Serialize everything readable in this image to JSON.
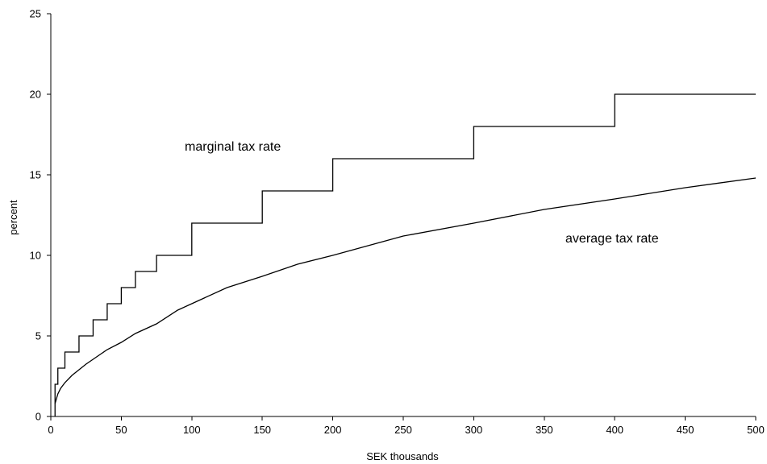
{
  "chart_data": {
    "type": "line",
    "title": "",
    "xlabel": "SEK thousands",
    "ylabel": "percent",
    "xlim": [
      0,
      500
    ],
    "ylim": [
      0,
      25
    ],
    "xticks": [
      0,
      50,
      100,
      150,
      200,
      250,
      300,
      350,
      400,
      450,
      500
    ],
    "yticks": [
      0,
      5,
      10,
      15,
      20,
      25
    ],
    "grid": false,
    "legend": "none",
    "series": [
      {
        "name": "marginal tax rate",
        "style": "step",
        "x": [
          3,
          3,
          5,
          5,
          10,
          10,
          15,
          15,
          20,
          20,
          30,
          30,
          40,
          40,
          50,
          50,
          60,
          60,
          75,
          75,
          100,
          100,
          150,
          150,
          200,
          200,
          300,
          300,
          400,
          400,
          500
        ],
        "y": [
          0,
          2,
          2,
          3,
          3,
          4,
          4,
          4,
          4,
          5,
          5,
          6,
          6,
          7,
          7,
          8,
          8,
          9,
          9,
          10,
          10,
          12,
          12,
          14,
          14,
          16,
          16,
          18,
          18,
          20,
          20
        ]
      },
      {
        "name": "average tax rate",
        "style": "line",
        "x": [
          3,
          5,
          7,
          10,
          15,
          20,
          25,
          30,
          40,
          50,
          60,
          75,
          90,
          100,
          125,
          150,
          175,
          200,
          250,
          300,
          350,
          400,
          450,
          500
        ],
        "y": [
          0.8,
          1.4,
          1.75,
          2.1,
          2.55,
          2.9,
          3.25,
          3.55,
          4.15,
          4.6,
          5.15,
          5.75,
          6.6,
          7.0,
          8.0,
          8.7,
          9.45,
          10.0,
          11.2,
          12.0,
          12.85,
          13.5,
          14.2,
          14.8
        ]
      }
    ],
    "annotations": [
      {
        "text": "marginal tax rate",
        "x": 95,
        "y": 16.5
      },
      {
        "text": "average tax rate",
        "x": 365,
        "y": 10.8
      }
    ]
  }
}
